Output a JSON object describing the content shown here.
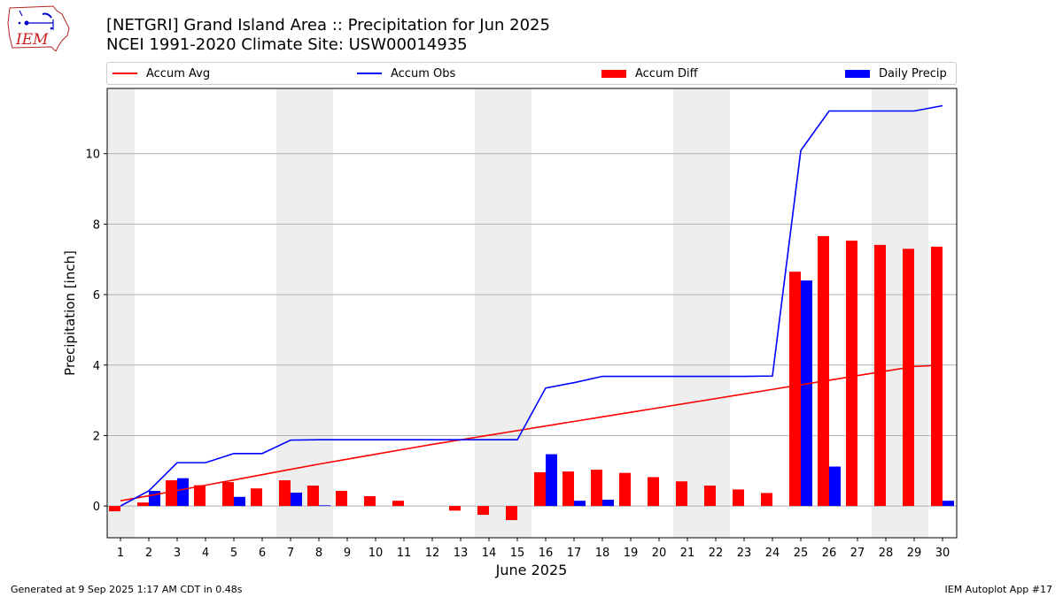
{
  "title_line1": "[NETGRI] Grand Island Area :: Precipitation for Jun 2025",
  "title_line2": "NCEI 1991-2020 Climate Site: USW00014935",
  "footer_left": "Generated at 9 Sep 2025 1:17 AM CDT in 0.48s",
  "footer_right": "IEM Autoplot App #17",
  "logo_text": "IEM",
  "legend": [
    {
      "label": "Accum Avg",
      "color": "#ff0000",
      "kind": "line"
    },
    {
      "label": "Accum Obs",
      "color": "#0000ff",
      "kind": "line"
    },
    {
      "label": "Accum Diff",
      "color": "#ff0000",
      "kind": "bar"
    },
    {
      "label": "Daily Precip",
      "color": "#0000ff",
      "kind": "bar"
    }
  ],
  "chart_data": {
    "type": "bar",
    "xlabel": "June 2025",
    "ylabel": "Precipitation [inch]",
    "x": [
      1,
      2,
      3,
      4,
      5,
      6,
      7,
      8,
      9,
      10,
      11,
      12,
      13,
      14,
      15,
      16,
      17,
      18,
      19,
      20,
      21,
      22,
      23,
      24,
      25,
      26,
      27,
      28,
      29,
      30
    ],
    "ylim": [
      -0.9,
      11.85
    ],
    "yticks": [
      0,
      2,
      4,
      6,
      8,
      10
    ],
    "grid": "horizontal",
    "legend_position": "top",
    "weekend_shaded_days": [
      1,
      7,
      8,
      14,
      15,
      21,
      22,
      28,
      29
    ],
    "series": [
      {
        "name": "Accum Avg",
        "type": "line",
        "color": "#ff0000",
        "values": [
          0.15,
          0.29,
          0.44,
          0.59,
          0.74,
          0.89,
          1.04,
          1.19,
          1.33,
          1.47,
          1.61,
          1.75,
          1.88,
          2.01,
          2.14,
          2.27,
          2.4,
          2.53,
          2.66,
          2.79,
          2.92,
          3.05,
          3.18,
          3.31,
          3.44,
          3.57,
          3.7,
          3.83,
          3.96,
          4.0
        ]
      },
      {
        "name": "Accum Obs",
        "type": "line",
        "color": "#0000ff",
        "values": [
          0.0,
          0.43,
          1.23,
          1.23,
          1.49,
          1.49,
          1.87,
          1.88,
          1.88,
          1.88,
          1.88,
          1.88,
          1.88,
          1.88,
          1.88,
          3.35,
          3.5,
          3.68,
          3.68,
          3.68,
          3.68,
          3.68,
          3.68,
          3.69,
          10.09,
          11.21,
          11.21,
          11.21,
          11.21,
          11.36
        ]
      },
      {
        "name": "Accum Diff",
        "type": "bar",
        "color": "#ff0000",
        "values": [
          -0.15,
          0.1,
          0.73,
          0.59,
          0.68,
          0.5,
          0.73,
          0.58,
          0.43,
          0.28,
          0.15,
          0.0,
          -0.13,
          -0.25,
          -0.4,
          0.96,
          0.98,
          1.03,
          0.94,
          0.82,
          0.7,
          0.58,
          0.47,
          0.37,
          6.65,
          7.66,
          7.53,
          7.41,
          7.3,
          7.36
        ]
      },
      {
        "name": "Daily Precip",
        "type": "bar",
        "color": "#0000ff",
        "values": [
          0.0,
          0.43,
          0.79,
          0.0,
          0.26,
          0.0,
          0.38,
          0.02,
          0.0,
          0.0,
          0.0,
          0.0,
          0.0,
          0.0,
          0.0,
          1.47,
          0.15,
          0.18,
          0.0,
          0.0,
          0.0,
          0.0,
          0.0,
          0.0,
          6.4,
          1.12,
          0.0,
          0.0,
          0.0,
          0.15
        ]
      }
    ]
  }
}
